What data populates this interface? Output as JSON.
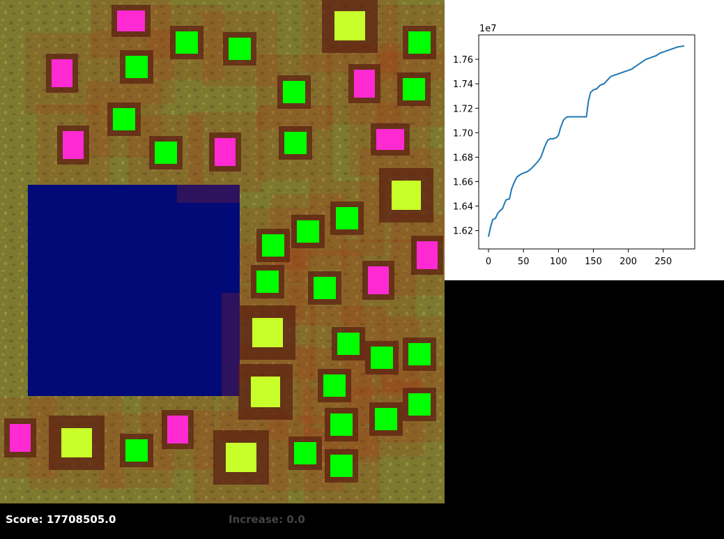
{
  "status": {
    "score_label": "Score:",
    "score_value": "17708505.0",
    "increase_label": "Increase:",
    "increase_value": "0.0"
  },
  "colors": {
    "grass": "#7d7a30",
    "water": "#020a78",
    "halo": "#b02a10",
    "house_pink": "#ff2ad2",
    "house_green": "#00ff00",
    "house_yellow": "#c8ff2a",
    "plot_line": "#1f77b4"
  },
  "chart_data": {
    "type": "line",
    "title": "",
    "xlabel": "",
    "ylabel": "",
    "offset_label": "1e7",
    "xlim": [
      -14,
      295
    ],
    "ylim": [
      1.605,
      1.78
    ],
    "xticks": [
      0,
      50,
      100,
      150,
      200,
      250
    ],
    "yticks": [
      1.62,
      1.64,
      1.66,
      1.68,
      1.7,
      1.72,
      1.74,
      1.76
    ],
    "ytick_labels": [
      "1.62",
      "1.64",
      "1.66",
      "1.68",
      "1.70",
      "1.72",
      "1.74",
      "1.76"
    ],
    "x": [
      0,
      3,
      6,
      10,
      13,
      16,
      20,
      25,
      30,
      33,
      35,
      38,
      41,
      46,
      50,
      55,
      60,
      65,
      70,
      75,
      80,
      83,
      85,
      88,
      92,
      97,
      100,
      103,
      107,
      110,
      113,
      120,
      130,
      140,
      143,
      146,
      150,
      155,
      160,
      165,
      170,
      175,
      180,
      185,
      190,
      195,
      200,
      205,
      210,
      215,
      220,
      225,
      230,
      235,
      240,
      245,
      250,
      255,
      260,
      265,
      270,
      275,
      280
    ],
    "y": [
      1.615,
      1.623,
      1.629,
      1.63,
      1.634,
      1.636,
      1.638,
      1.645,
      1.646,
      1.654,
      1.657,
      1.661,
      1.664,
      1.666,
      1.667,
      1.668,
      1.67,
      1.673,
      1.676,
      1.68,
      1.688,
      1.692,
      1.694,
      1.695,
      1.695,
      1.696,
      1.698,
      1.704,
      1.71,
      1.712,
      1.713,
      1.713,
      1.713,
      1.713,
      1.726,
      1.733,
      1.735,
      1.736,
      1.739,
      1.74,
      1.743,
      1.746,
      1.747,
      1.748,
      1.749,
      1.75,
      1.751,
      1.752,
      1.754,
      1.756,
      1.758,
      1.76,
      1.761,
      1.762,
      1.763,
      1.765,
      1.766,
      1.767,
      1.768,
      1.769,
      1.77,
      1.7705,
      1.771
    ]
  }
}
